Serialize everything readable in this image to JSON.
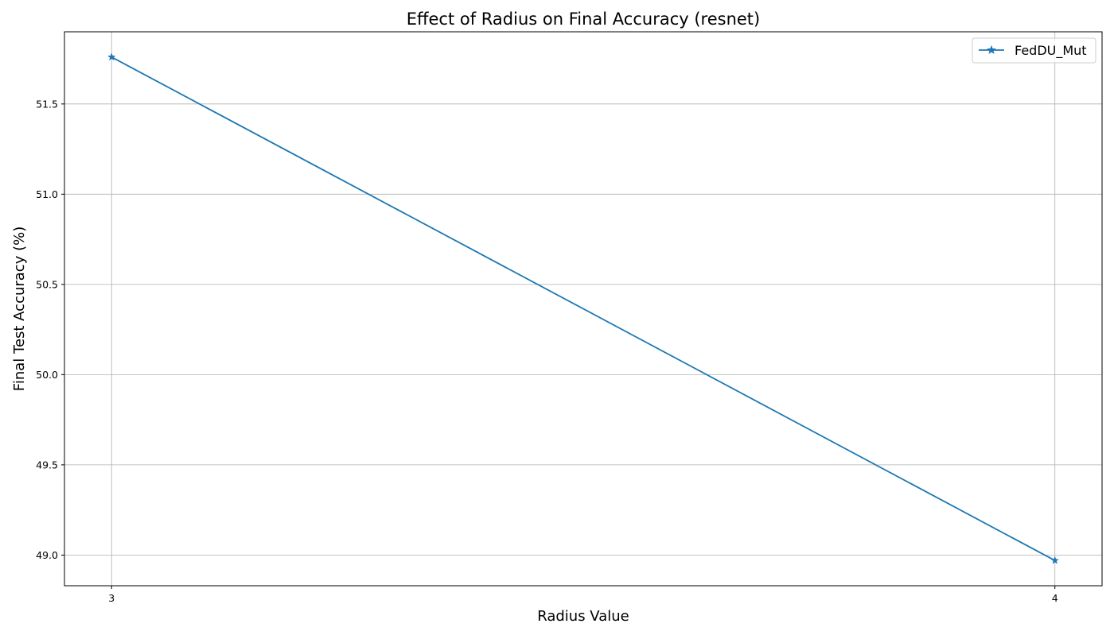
{
  "chart_data": {
    "type": "line",
    "title": "Effect of Radius on Final Accuracy (resnet)",
    "xlabel": "Radius Value",
    "ylabel": "Final Test Accuracy (%)",
    "x": [
      3,
      4
    ],
    "x_ticks": [
      "3",
      "4"
    ],
    "y_ticks": [
      49.0,
      49.5,
      50.0,
      50.5,
      51.0,
      51.5
    ],
    "y_tick_labels": [
      "49.0",
      "49.5",
      "50.0",
      "50.5",
      "51.0",
      "51.5"
    ],
    "xlim": [
      2.95,
      4.05
    ],
    "ylim": [
      48.83,
      51.9
    ],
    "grid": true,
    "legend_position": "top-right",
    "series": [
      {
        "name": "FedDU_Mut",
        "values": [
          51.76,
          48.97
        ],
        "color": "#1f77b4",
        "marker": "star"
      }
    ]
  }
}
